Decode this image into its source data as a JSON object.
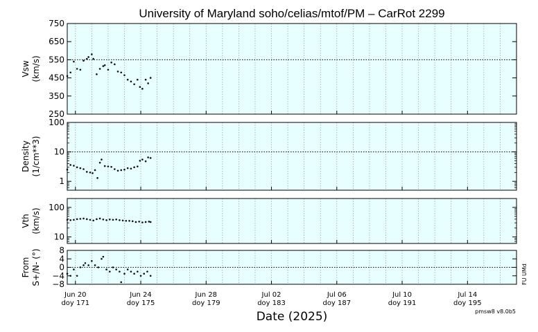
{
  "chart_data": {
    "type": "scatter",
    "title": "University of Maryland  soho/celias/mtof/PM – CarRot 2299",
    "xlabel": "Date (2025)",
    "version": "pmsw8 v8.0b5",
    "side_note": "FU UMd",
    "xlim": [
      170.5,
      198
    ],
    "x_ticks": [
      {
        "value": 171,
        "date": "Jun 20",
        "doy": "doy 171"
      },
      {
        "value": 175,
        "date": "Jun 24",
        "doy": "doy 175"
      },
      {
        "value": 179,
        "date": "Jun 28",
        "doy": "doy 179"
      },
      {
        "value": 183,
        "date": "Jul 02",
        "doy": "doy 183"
      },
      {
        "value": 187,
        "date": "Jul 06",
        "doy": "doy 187"
      },
      {
        "value": 191,
        "date": "Jul 10",
        "doy": "doy 191"
      },
      {
        "value": 195,
        "date": "Jul 14",
        "doy": "doy 195"
      }
    ],
    "panels": [
      {
        "id": "vsw",
        "ylabel": [
          "Vsw",
          "(km/s)"
        ],
        "scale": "linear",
        "ylim": [
          250,
          750
        ],
        "yticks": [
          250,
          350,
          450,
          550,
          650,
          750
        ],
        "ytick_labels": [
          "250",
          "350",
          "450",
          "550",
          "650",
          "750"
        ],
        "reference_line": 550,
        "x": [
          170.5,
          170.7,
          170.9,
          171.1,
          171.3,
          171.5,
          171.7,
          171.8,
          172.0,
          172.1,
          172.3,
          172.5,
          172.7,
          172.8,
          173.0,
          173.2,
          173.4,
          173.6,
          173.8,
          174.0,
          174.2,
          174.4,
          174.6,
          174.8,
          174.95,
          175.1,
          175.3,
          175.45,
          175.6
        ],
        "y": [
          460,
          480,
          540,
          500,
          495,
          545,
          555,
          565,
          580,
          555,
          470,
          500,
          515,
          520,
          495,
          535,
          525,
          485,
          480,
          465,
          440,
          430,
          415,
          440,
          400,
          390,
          440,
          420,
          450
        ]
      },
      {
        "id": "density",
        "ylabel": [
          "Density",
          "(1/cm**3)"
        ],
        "scale": "log",
        "ylim": [
          0.5,
          100
        ],
        "yticks": [
          1,
          10,
          100
        ],
        "ytick_labels": [
          "1",
          "10",
          "100"
        ],
        "reference_line": 10,
        "x": [
          170.5,
          170.7,
          170.9,
          171.1,
          171.3,
          171.5,
          171.7,
          171.9,
          172.05,
          172.2,
          172.35,
          172.5,
          172.6,
          172.8,
          173.0,
          173.2,
          173.4,
          173.6,
          173.8,
          174.0,
          174.2,
          174.4,
          174.6,
          174.8,
          174.95,
          175.1,
          175.3,
          175.45,
          175.6
        ],
        "y": [
          2.5,
          3.6,
          3.4,
          3.0,
          2.8,
          2.6,
          2.1,
          2.0,
          1.9,
          2.4,
          1.3,
          4.3,
          5.5,
          3.3,
          3.2,
          3.1,
          2.6,
          2.3,
          2.4,
          2.5,
          2.8,
          2.7,
          3.0,
          3.2,
          5.0,
          5.5,
          4.8,
          6.5,
          6.2
        ]
      },
      {
        "id": "vth",
        "ylabel": [
          "Vth",
          "(km/s)"
        ],
        "scale": "log",
        "ylim": [
          6,
          200
        ],
        "yticks": [
          10,
          100
        ],
        "ytick_labels": [
          "10",
          "100"
        ],
        "reference_line": null,
        "x": [
          170.5,
          170.7,
          170.9,
          171.1,
          171.3,
          171.5,
          171.7,
          171.9,
          172.1,
          172.3,
          172.5,
          172.7,
          172.9,
          173.1,
          173.3,
          173.5,
          173.7,
          173.9,
          174.1,
          174.3,
          174.5,
          174.7,
          174.9,
          175.1,
          175.3,
          175.5,
          175.6
        ],
        "y": [
          38,
          37,
          38,
          40,
          41,
          42,
          40,
          38,
          36,
          40,
          42,
          39,
          37,
          39,
          38,
          39,
          37,
          36,
          35,
          35,
          34,
          32,
          33,
          31,
          32,
          33,
          32
        ]
      },
      {
        "id": "from",
        "ylabel": [
          "From",
          "S+/N- (°)"
        ],
        "scale": "linear",
        "ylim": [
          -8,
          8
        ],
        "yticks": [
          -8,
          -4,
          0,
          4,
          8
        ],
        "ytick_labels": [
          "−8",
          "−4",
          "0",
          "4",
          "8"
        ],
        "reference_line": 0,
        "x": [
          170.5,
          170.7,
          170.9,
          171.1,
          171.3,
          171.5,
          171.6,
          171.8,
          172.0,
          172.2,
          172.4,
          172.6,
          172.7,
          172.9,
          173.1,
          173.3,
          173.5,
          173.7,
          173.8,
          174.0,
          174.2,
          174.4,
          174.6,
          174.8,
          175.0,
          175.2,
          175.4,
          175.6
        ],
        "y": [
          -3,
          -4,
          -1,
          -4,
          0,
          1,
          2,
          1,
          3,
          1,
          0,
          4,
          5,
          -1,
          -2,
          0,
          -1,
          -2,
          -7,
          -3,
          -1,
          -2,
          -3,
          -2,
          -4,
          -3,
          -2,
          -4
        ]
      }
    ]
  }
}
